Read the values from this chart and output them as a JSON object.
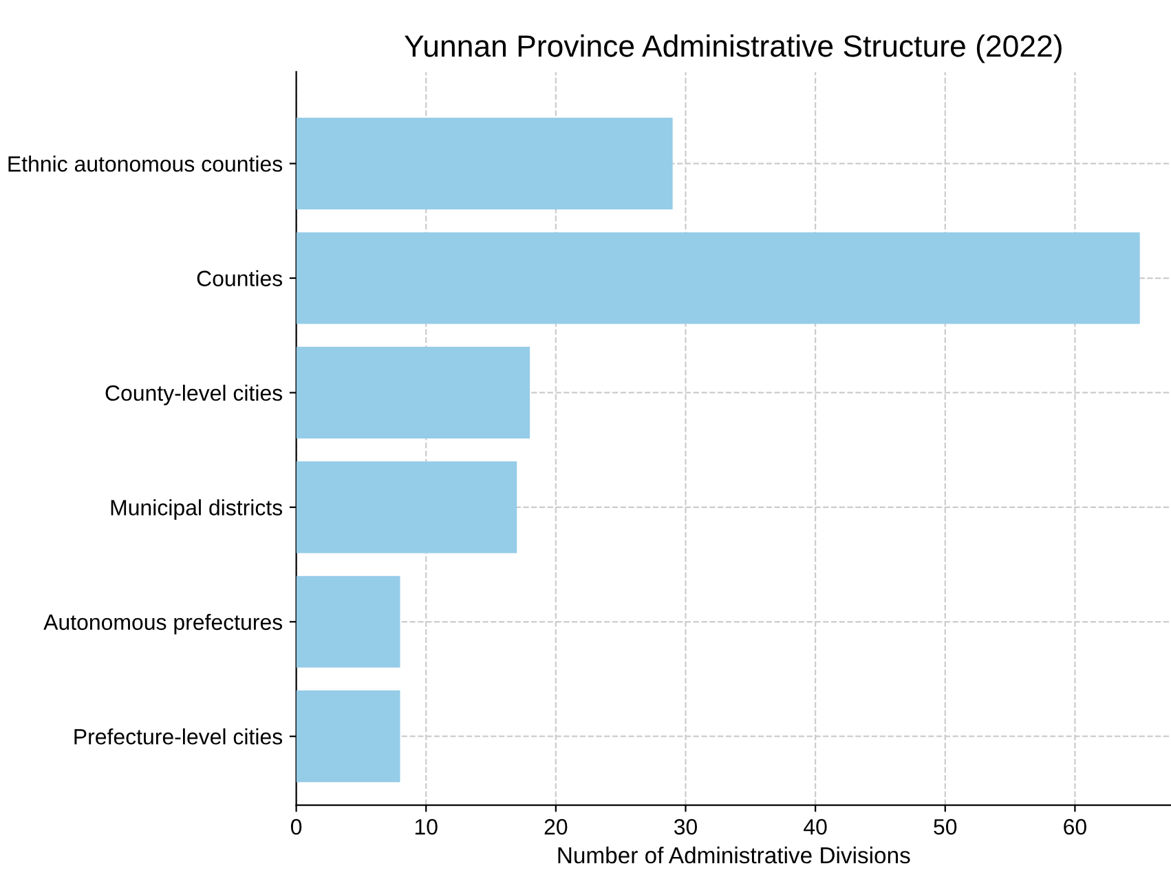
{
  "chart_data": {
    "type": "bar",
    "orientation": "horizontal",
    "title": "Yunnan Province Administrative Structure (2022)",
    "xlabel": "Number of Administrative Divisions",
    "categories": [
      "Ethnic autonomous counties",
      "Counties",
      "County-level cities",
      "Municipal districts",
      "Autonomous prefectures",
      "Prefecture-level cities"
    ],
    "values": [
      29,
      65,
      18,
      17,
      8,
      8
    ],
    "color": "#95cce8",
    "xlim": [
      0,
      67.4
    ],
    "xticks": [
      0,
      10,
      20,
      30,
      40,
      50,
      60
    ],
    "grid": true
  }
}
